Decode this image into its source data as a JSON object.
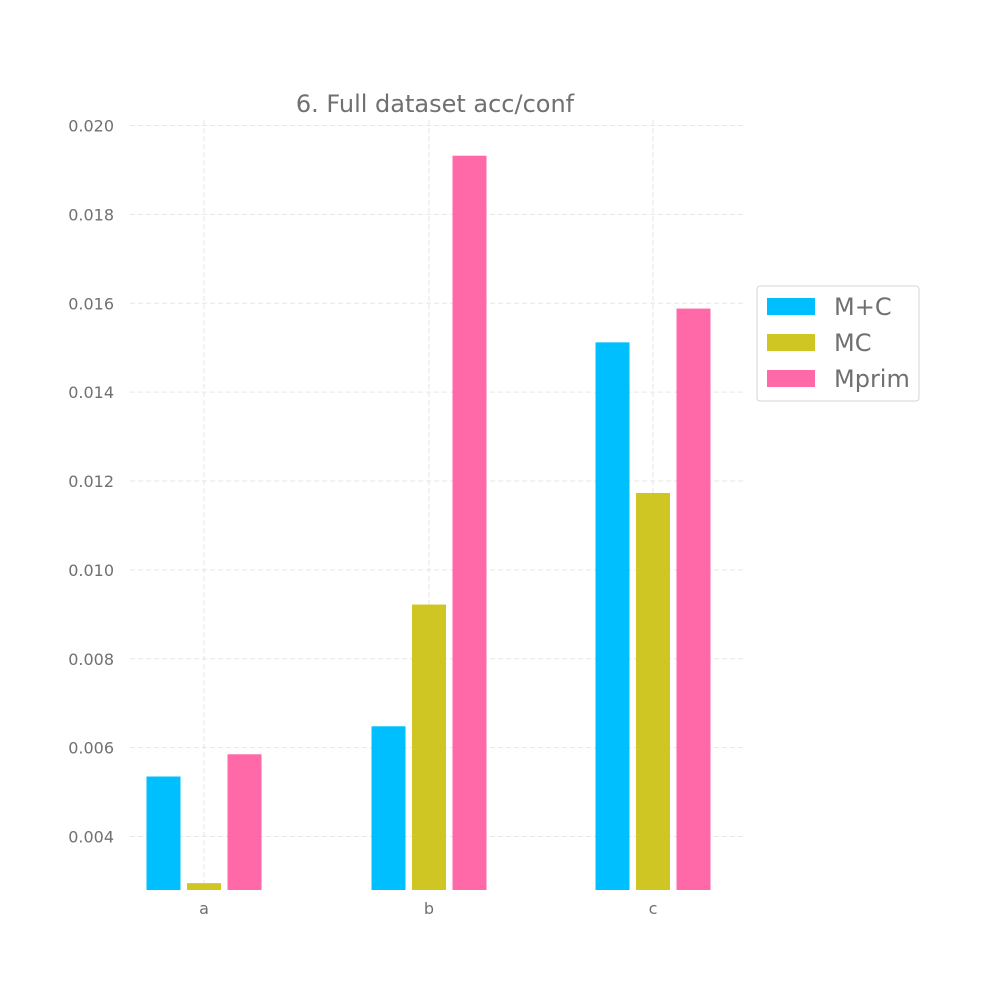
{
  "chart_data": {
    "type": "bar",
    "title": "6. Full dataset acc/conf",
    "xlabel": "",
    "ylabel": "",
    "categories": [
      "a",
      "b",
      "c"
    ],
    "series": [
      {
        "name": "M+C",
        "color": "#00bfff",
        "values": [
          0.00535,
          0.00648,
          0.01512
        ]
      },
      {
        "name": "MC",
        "color": "#cfc624",
        "values": [
          0.00295,
          0.00922,
          0.01173
        ]
      },
      {
        "name": "Mprim",
        "color": "#ff69a8",
        "values": [
          0.00585,
          0.01932,
          0.01588
        ]
      }
    ],
    "ylim": [
      0.00285,
      0.0202
    ],
    "yticks": [
      "0.004",
      "0.006",
      "0.008",
      "0.010",
      "0.012",
      "0.014",
      "0.016",
      "0.018",
      "0.020"
    ],
    "grid": true,
    "legend_position": "right"
  }
}
